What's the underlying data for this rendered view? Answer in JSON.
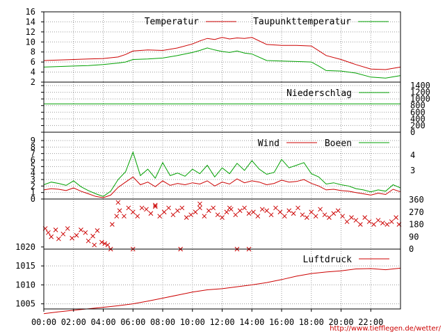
{
  "credit_url": "http://www.tiefflegen.de/wetter/",
  "colors": {
    "red": "#cc0000",
    "green": "#00a000",
    "grid": "#9a9a9a",
    "frame": "#000000"
  },
  "x_ticks": [
    "00:00",
    "02:00",
    "04:00",
    "06:00",
    "08:00",
    "10:00",
    "12:00",
    "14:00",
    "16:00",
    "18:00",
    "20:00",
    "22:00"
  ],
  "chart_data": [
    {
      "type": "line",
      "panel": "temperature",
      "x_unit": "hours",
      "xlim": [
        0,
        24
      ],
      "ylim": [
        2,
        16
      ],
      "y_ticks": [
        "2",
        "4",
        "6",
        "8",
        "10",
        "12",
        "14",
        "16"
      ],
      "grid": true,
      "legend_position": "top-right",
      "series": [
        {
          "name": "Temperatur",
          "color": "#cc0000",
          "x": [
            0,
            1,
            2,
            3,
            4,
            5,
            5.5,
            6,
            7,
            8,
            9,
            10,
            10.5,
            11,
            11.5,
            12,
            12.5,
            13,
            13.5,
            14,
            15,
            16,
            17,
            18,
            19,
            20,
            21,
            22,
            23,
            24
          ],
          "y": [
            6.3,
            6.4,
            6.5,
            6.6,
            6.7,
            7.0,
            7.5,
            8.2,
            8.4,
            8.3,
            8.8,
            9.6,
            10.2,
            10.7,
            10.5,
            10.9,
            10.6,
            10.8,
            10.7,
            10.9,
            9.5,
            9.3,
            9.3,
            9.2,
            7.3,
            6.5,
            5.5,
            4.6,
            4.5,
            5.0
          ]
        },
        {
          "name": "Taupunkttemperatur",
          "color": "#00a000",
          "x": [
            0,
            1,
            2,
            3,
            4,
            5,
            5.5,
            6,
            7,
            8,
            9,
            10,
            10.5,
            11,
            11.5,
            12,
            12.5,
            13,
            13.5,
            14,
            15,
            16,
            17,
            18,
            18.5,
            19,
            20,
            21,
            22,
            23,
            24
          ],
          "y": [
            5.0,
            5.1,
            5.2,
            5.3,
            5.5,
            5.8,
            6.0,
            6.5,
            6.6,
            6.8,
            7.3,
            7.9,
            8.3,
            8.8,
            8.4,
            8.1,
            7.9,
            8.2,
            7.8,
            7.6,
            6.3,
            6.2,
            6.1,
            6.0,
            5.2,
            4.3,
            4.2,
            3.8,
            3.0,
            2.8,
            3.3
          ]
        }
      ]
    },
    {
      "type": "line",
      "panel": "precipitation",
      "x_unit": "hours",
      "xlim": [
        0,
        24
      ],
      "ylim": [
        0,
        1400
      ],
      "y_ticks": [
        "0",
        "200",
        "400",
        "600",
        "800",
        "1000",
        "1200",
        "1400"
      ],
      "grid": true,
      "legend_position": "top-right",
      "series": [
        {
          "name": "Niederschlag",
          "color": "#00a000",
          "x": [
            0,
            24
          ],
          "y": [
            850,
            850
          ]
        }
      ]
    },
    {
      "type": "line",
      "panel": "wind",
      "x_unit": "hours",
      "xlim": [
        0,
        24
      ],
      "ylim": [
        0,
        9
      ],
      "y_ticks": [
        "0",
        "1",
        "2",
        "3",
        "4",
        "5",
        "6",
        "7",
        "8",
        "9"
      ],
      "right_ticks": [
        "3",
        "4"
      ],
      "grid": true,
      "legend_position": "top-right",
      "series": [
        {
          "name": "Wind",
          "color": "#cc0000",
          "x": [
            0,
            0.5,
            1,
            1.5,
            2,
            2.5,
            3,
            3.5,
            4,
            4.5,
            5,
            5.5,
            6,
            6.5,
            7,
            7.5,
            8,
            8.5,
            9,
            9.5,
            10,
            10.5,
            11,
            11.5,
            12,
            12.5,
            13,
            13.5,
            14,
            14.5,
            15,
            15.5,
            16,
            16.5,
            17,
            17.5,
            18,
            18.5,
            19,
            19.5,
            20,
            20.5,
            21,
            21.5,
            22,
            22.5,
            23,
            23.5,
            24
          ],
          "y": [
            1.4,
            1.6,
            1.5,
            1.3,
            1.7,
            1.2,
            0.8,
            0.4,
            0.2,
            0.6,
            1.8,
            2.6,
            3.4,
            2.2,
            2.6,
            1.9,
            2.8,
            2.1,
            2.4,
            2.2,
            2.5,
            2.3,
            2.8,
            2.0,
            2.6,
            2.3,
            3.1,
            2.5,
            2.8,
            2.6,
            2.2,
            2.4,
            2.9,
            2.6,
            2.7,
            3.0,
            2.4,
            2.0,
            1.4,
            1.5,
            1.3,
            1.2,
            1.0,
            0.8,
            0.6,
            0.9,
            0.7,
            1.5,
            1.1
          ]
        },
        {
          "name": "Boeen",
          "color": "#00a000",
          "x": [
            0,
            0.5,
            1,
            1.5,
            2,
            2.5,
            3,
            3.5,
            4,
            4.5,
            5,
            5.5,
            6,
            6.5,
            7,
            7.5,
            8,
            8.5,
            9,
            9.5,
            10,
            10.5,
            11,
            11.5,
            12,
            12.5,
            13,
            13.5,
            14,
            14.5,
            15,
            15.5,
            16,
            16.5,
            17,
            17.5,
            18,
            18.5,
            19,
            19.5,
            20,
            20.5,
            21,
            21.5,
            22,
            22.5,
            23,
            23.5,
            24
          ],
          "y": [
            2.2,
            2.6,
            2.4,
            2.1,
            2.8,
            1.9,
            1.3,
            0.8,
            0.4,
            1.2,
            3.0,
            4.2,
            7.2,
            3.6,
            4.6,
            3.2,
            5.6,
            3.6,
            4.0,
            3.5,
            4.6,
            3.9,
            5.2,
            3.4,
            4.8,
            3.9,
            5.5,
            4.4,
            5.9,
            4.6,
            3.8,
            4.1,
            6.1,
            4.8,
            5.2,
            5.6,
            3.9,
            3.4,
            2.3,
            2.5,
            2.2,
            2.0,
            1.6,
            1.4,
            1.1,
            1.4,
            1.2,
            2.2,
            1.7
          ]
        }
      ]
    },
    {
      "type": "scatter",
      "panel": "wind-direction",
      "x_unit": "hours",
      "xlim": [
        0,
        24
      ],
      "ylim": [
        0,
        360
      ],
      "right_ticks": [
        "0",
        "90",
        "180",
        "270",
        "360"
      ],
      "grid": true,
      "series": [
        {
          "name": "",
          "color": "#cc0000",
          "x": [
            0.1,
            0.3,
            0.5,
            0.8,
            1.0,
            1.3,
            1.6,
            1.9,
            2.2,
            2.5,
            2.8,
            3.0,
            3.3,
            3.6,
            3.9,
            4.1,
            4.3,
            4.6,
            4.9,
            5.1,
            5.4,
            5.7,
            6.0,
            6.3,
            6.6,
            6.9,
            7.2,
            7.5,
            7.8,
            8.1,
            8.4,
            8.7,
            9.0,
            9.3,
            9.6,
            9.9,
            10.2,
            10.5,
            10.8,
            11.1,
            11.4,
            11.7,
            12.0,
            12.3,
            12.6,
            12.9,
            13.2,
            13.5,
            13.8,
            14.1,
            14.4,
            14.7,
            15.0,
            15.3,
            15.6,
            15.9,
            16.2,
            16.5,
            16.8,
            17.1,
            17.4,
            17.7,
            18.0,
            18.3,
            18.6,
            18.9,
            19.2,
            19.5,
            19.8,
            20.1,
            20.4,
            20.7,
            21.0,
            21.3,
            21.6,
            21.9,
            22.2,
            22.5,
            22.8,
            23.1,
            23.4,
            23.7,
            23.9,
            3.4,
            4.5,
            6.0,
            9.2,
            13.0,
            13.8,
            5.0,
            7.5,
            10.5,
            12.5
          ],
          "y": [
            150,
            120,
            90,
            140,
            75,
            110,
            150,
            80,
            100,
            140,
            120,
            60,
            95,
            135,
            50,
            40,
            30,
            180,
            240,
            280,
            240,
            300,
            270,
            240,
            300,
            290,
            260,
            310,
            240,
            270,
            300,
            250,
            280,
            300,
            230,
            250,
            270,
            300,
            240,
            280,
            300,
            250,
            230,
            270,
            290,
            250,
            280,
            300,
            260,
            270,
            240,
            290,
            280,
            250,
            300,
            270,
            240,
            280,
            260,
            300,
            250,
            230,
            270,
            240,
            290,
            250,
            230,
            260,
            280,
            240,
            200,
            230,
            210,
            180,
            230,
            200,
            180,
            210,
            190,
            180,
            200,
            230,
            180,
            30,
            0,
            0,
            0,
            0,
            0,
            340,
            320,
            330,
            300
          ]
        }
      ]
    },
    {
      "type": "line",
      "panel": "pressure",
      "x_unit": "hours",
      "xlim": [
        0,
        24
      ],
      "ylim": [
        1002,
        1022
      ],
      "y_ticks": [
        "1005",
        "1010",
        "1015",
        "1020"
      ],
      "grid": true,
      "legend_position": "top-right",
      "series": [
        {
          "name": "Luftdruck",
          "color": "#cc0000",
          "x": [
            0,
            1,
            2,
            3,
            4,
            5,
            6,
            7,
            8,
            9,
            10,
            11,
            12,
            13,
            14,
            15,
            16,
            17,
            18,
            19,
            20,
            21,
            22,
            23,
            24
          ],
          "y": [
            1002.4,
            1002.9,
            1003.3,
            1003.7,
            1004.1,
            1004.5,
            1005.0,
            1005.7,
            1006.5,
            1007.3,
            1008.1,
            1008.7,
            1009.0,
            1009.5,
            1010.0,
            1010.6,
            1011.4,
            1012.3,
            1013.0,
            1013.4,
            1013.7,
            1014.2,
            1014.3,
            1014.0,
            1014.4
          ]
        }
      ]
    }
  ]
}
